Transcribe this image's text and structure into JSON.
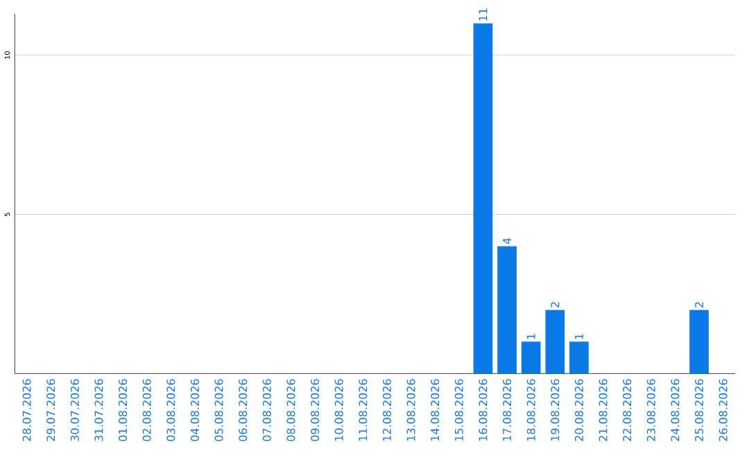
{
  "chart_data": {
    "type": "bar",
    "categories": [
      "28.07.2026",
      "29.07.2026",
      "30.07.2026",
      "31.07.2026",
      "01.08.2026",
      "02.08.2026",
      "03.08.2026",
      "04.08.2026",
      "05.08.2026",
      "06.08.2026",
      "07.08.2026",
      "08.08.2026",
      "09.08.2026",
      "10.08.2026",
      "11.08.2026",
      "12.08.2026",
      "13.08.2026",
      "14.08.2026",
      "15.08.2026",
      "16.08.2026",
      "17.08.2026",
      "18.08.2026",
      "19.08.2026",
      "20.08.2026",
      "21.08.2026",
      "22.08.2026",
      "23.08.2026",
      "24.08.2026",
      "25.08.2026",
      "26.08.2026"
    ],
    "values": [
      0,
      0,
      0,
      0,
      0,
      0,
      0,
      0,
      0,
      0,
      0,
      0,
      0,
      0,
      0,
      0,
      0,
      0,
      0,
      11,
      4,
      1,
      2,
      1,
      0,
      0,
      0,
      0,
      2,
      0
    ],
    "value_labels": [
      null,
      null,
      null,
      null,
      null,
      null,
      null,
      null,
      null,
      null,
      null,
      null,
      null,
      null,
      null,
      null,
      null,
      null,
      null,
      "11",
      "4",
      "1",
      "2",
      "1",
      null,
      null,
      null,
      null,
      "2",
      null
    ],
    "color": "#0a7ae6",
    "ylim": [
      0,
      11.3
    ],
    "yticks": [
      5,
      10
    ],
    "grid": "y"
  }
}
